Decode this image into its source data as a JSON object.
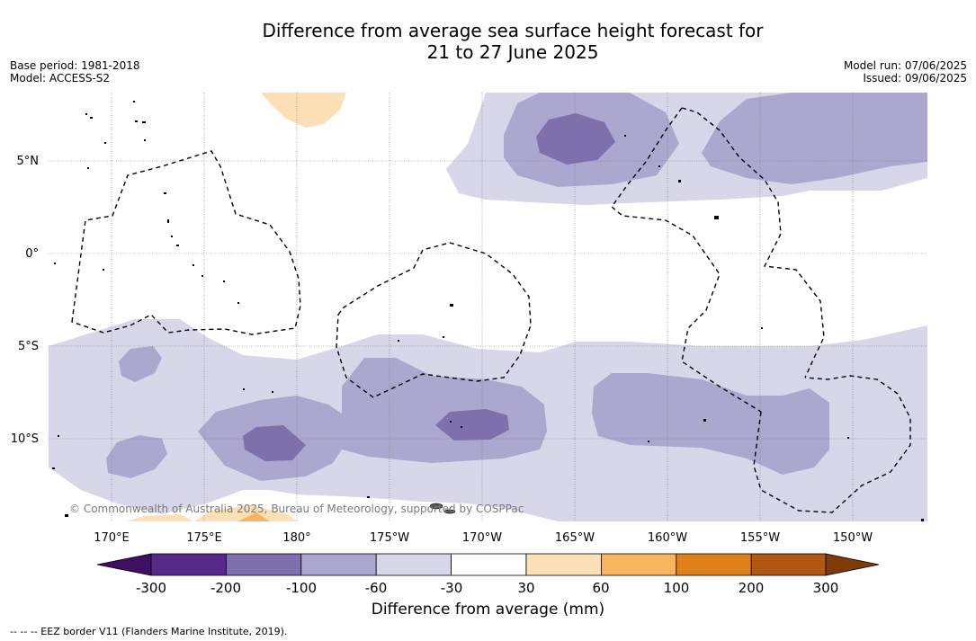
{
  "title": {
    "line1": "Difference from average sea surface height forecast for",
    "line2": "21 to 27 June 2025"
  },
  "meta": {
    "base_period": "Base period: 1981-2018",
    "model": "Model: ACCESS-S2",
    "model_run": "Model run: 07/06/2025",
    "issued": "Issued: 09/06/2025"
  },
  "map": {
    "latitude_labels": [
      "5°N",
      "0°",
      "5°S",
      "10°S"
    ],
    "longitude_labels": [
      "170°E",
      "175°E",
      "180°",
      "175°W",
      "170°W",
      "165°W",
      "160°W",
      "155°W",
      "150°W"
    ],
    "credit": "© Commonwealth of Australia 2025, Bureau of Meteorology, supported by COSPPac",
    "border_style": "dashed"
  },
  "colorbar": {
    "title": "Difference from average (mm)",
    "ticks": [
      "-300",
      "-200",
      "-100",
      "-60",
      "-30",
      "30",
      "60",
      "100",
      "200",
      "300"
    ],
    "colors": [
      "#3f0f63",
      "#56298a",
      "#7e6fad",
      "#aba7cf",
      "#d7d7e9",
      "#ffffff",
      "#fde0b5",
      "#f8b45f",
      "#de811a",
      "#ae5812",
      "#7f3b08"
    ]
  },
  "footnote": "--  --  -- EEZ border V11 (Flanders Marine Institute, 2019)."
}
